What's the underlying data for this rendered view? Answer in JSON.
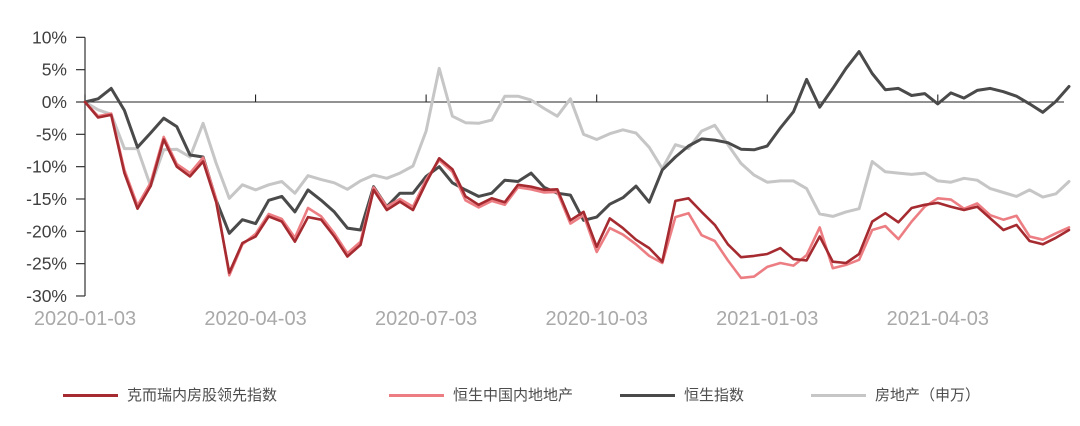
{
  "chart_data": {
    "type": "line",
    "title": "",
    "xlabel": "",
    "ylabel": "",
    "y_ticks": [
      10,
      5,
      0,
      -5,
      -10,
      -15,
      -20,
      -25,
      -30
    ],
    "y_tick_suffix": "%",
    "ylim": [
      -30,
      10
    ],
    "x_tick_labels": [
      "2020-01-03",
      "2020-04-03",
      "2020-07-03",
      "2020-10-03",
      "2021-01-03",
      "2021-04-03"
    ],
    "x_tick_weeks": [
      0,
      13,
      26,
      39,
      52,
      65
    ],
    "x_unit": "week",
    "weeks_total": 75,
    "grid": "zero-line-only",
    "legend_position": "bottom",
    "colors": {
      "axis": "#333333",
      "zero_line": "#262626",
      "y_label": "#3f3f3f",
      "x_label": "#a9a9a9",
      "legend_text": "#4d4d4d"
    },
    "series": [
      {
        "name": "克而瑞内房股领先指数",
        "color": "#a52b31",
        "width": 2.6,
        "values": [
          0,
          -2.4,
          -2.0,
          -11.0,
          -16.5,
          -13.0,
          -5.8,
          -10.0,
          -11.5,
          -9.2,
          -15.5,
          -26.4,
          -21.8,
          -20.8,
          -17.7,
          -18.5,
          -21.6,
          -17.8,
          -18.2,
          -20.8,
          -23.9,
          -22.1,
          -13.6,
          -16.7,
          -15.4,
          -16.7,
          -12.5,
          -8.7,
          -10.4,
          -14.6,
          -15.9,
          -14.9,
          -15.5,
          -12.8,
          -13.1,
          -13.6,
          -13.5,
          -18.3,
          -17.0,
          -22.4,
          -18.0,
          -19.5,
          -21.3,
          -22.6,
          -24.7,
          -15.3,
          -14.9,
          -17.0,
          -19.0,
          -22.0,
          -24.0,
          -23.8,
          -23.5,
          -22.6,
          -24.3,
          -24.5,
          -20.8,
          -24.7,
          -24.9,
          -23.5,
          -18.5,
          -17.2,
          -18.6,
          -16.4,
          -15.9,
          -15.6,
          -16.2,
          -16.7,
          -16.2,
          -18.0,
          -19.8,
          -19.0,
          -21.5,
          -22.0,
          -21.0,
          -19.8
        ]
      },
      {
        "name": "恒生中国内地地产",
        "color": "#ec7e83",
        "width": 2.6,
        "values": [
          0,
          -2.2,
          -1.8,
          -10.5,
          -16.0,
          -12.5,
          -5.4,
          -9.6,
          -11.0,
          -8.6,
          -15.0,
          -26.8,
          -22.0,
          -20.4,
          -17.3,
          -18.1,
          -21.0,
          -16.4,
          -17.7,
          -20.3,
          -23.4,
          -21.6,
          -13.2,
          -16.2,
          -15.0,
          -16.2,
          -12.0,
          -9.0,
          -10.8,
          -15.2,
          -16.3,
          -15.3,
          -15.9,
          -13.2,
          -13.5,
          -14.0,
          -13.9,
          -18.8,
          -17.5,
          -23.2,
          -19.5,
          -20.5,
          -22.0,
          -23.8,
          -24.9,
          -17.8,
          -17.2,
          -20.6,
          -21.5,
          -24.5,
          -27.2,
          -27.0,
          -25.5,
          -24.9,
          -25.3,
          -23.7,
          -19.4,
          -25.7,
          -25.2,
          -24.4,
          -19.8,
          -19.2,
          -21.2,
          -18.5,
          -16.2,
          -14.9,
          -15.1,
          -16.5,
          -15.7,
          -17.5,
          -18.2,
          -17.6,
          -20.8,
          -21.3,
          -20.3,
          -19.4
        ]
      },
      {
        "name": "恒生指数",
        "color": "#4a4a4a",
        "width": 3,
        "values": [
          0,
          0.5,
          2.1,
          -1.3,
          -7.0,
          -4.8,
          -2.5,
          -3.8,
          -8.2,
          -8.5,
          -15.2,
          -20.3,
          -18.2,
          -18.8,
          -15.2,
          -14.6,
          -17.0,
          -13.6,
          -15.2,
          -17.0,
          -19.5,
          -19.8,
          -13.1,
          -16.2,
          -14.1,
          -14.1,
          -11.5,
          -10.0,
          -12.5,
          -13.6,
          -14.6,
          -14.1,
          -12.1,
          -12.3,
          -11.0,
          -13.2,
          -14.1,
          -14.4,
          -18.3,
          -17.8,
          -15.8,
          -14.8,
          -13.0,
          -15.5,
          -10.5,
          -8.5,
          -6.8,
          -5.7,
          -5.9,
          -6.3,
          -7.3,
          -7.4,
          -6.8,
          -4.0,
          -1.5,
          3.5,
          -0.8,
          2.1,
          5.2,
          7.8,
          4.4,
          1.9,
          2.1,
          1.0,
          1.3,
          -0.3,
          1.4,
          0.6,
          1.8,
          2.1,
          1.6,
          0.9,
          -0.3,
          -1.6,
          0.1,
          2.4
        ]
      },
      {
        "name": "房地产（申万）",
        "color": "#c6c6c6",
        "width": 3,
        "values": [
          0,
          -1.2,
          -1.9,
          -7.2,
          -7.2,
          -13.0,
          -7.4,
          -7.3,
          -8.5,
          -3.3,
          -9.5,
          -14.9,
          -12.8,
          -13.6,
          -12.8,
          -12.3,
          -14.1,
          -11.4,
          -12.0,
          -12.5,
          -13.5,
          -12.2,
          -11.3,
          -11.8,
          -11.0,
          -9.9,
          -4.5,
          5.2,
          -2.2,
          -3.2,
          -3.3,
          -2.8,
          0.9,
          0.9,
          0.3,
          -1.0,
          -2.2,
          0.5,
          -5.0,
          -5.8,
          -4.9,
          -4.3,
          -4.8,
          -7.0,
          -10.3,
          -6.6,
          -7.2,
          -4.5,
          -3.6,
          -6.6,
          -9.5,
          -11.3,
          -12.4,
          -12.2,
          -12.2,
          -13.4,
          -17.3,
          -17.7,
          -17.0,
          -16.5,
          -9.2,
          -10.8,
          -11.0,
          -11.2,
          -11.0,
          -12.2,
          -12.4,
          -11.8,
          -12.1,
          -13.4,
          -14.0,
          -14.6,
          -13.6,
          -14.7,
          -14.2,
          -12.3
        ]
      }
    ]
  }
}
